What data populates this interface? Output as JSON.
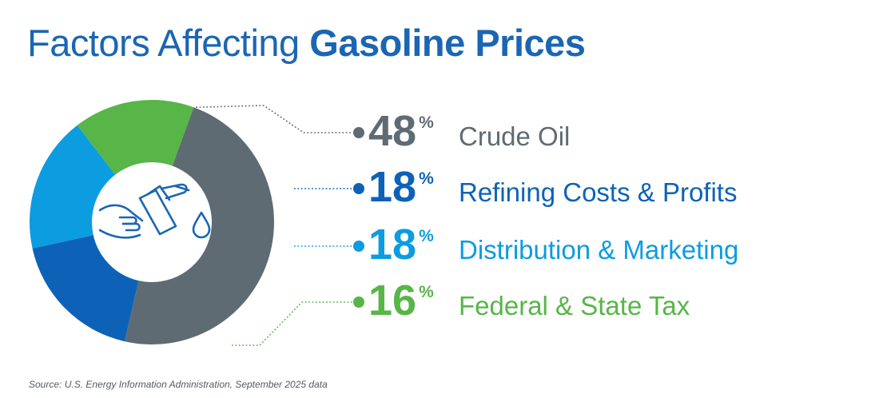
{
  "title": {
    "regular": "Factors Affecting",
    "bold": "Gasoline Prices"
  },
  "source": "Source: U.S. Energy Information Administration, September 2025 data",
  "center_icon": "gas-pump-nozzle-icon",
  "chart_data": {
    "type": "pie",
    "style": "donut",
    "unit": "%",
    "slices": [
      {
        "label": "Crude Oil",
        "value": 48,
        "color": "#5f6b73"
      },
      {
        "label": "Refining Costs & Profits",
        "value": 18,
        "color": "#0d62b8"
      },
      {
        "label": "Distribution & Marketing",
        "value": 18,
        "color": "#0c9ce0"
      },
      {
        "label": "Federal & State Tax",
        "value": 16,
        "color": "#58b548"
      }
    ]
  }
}
